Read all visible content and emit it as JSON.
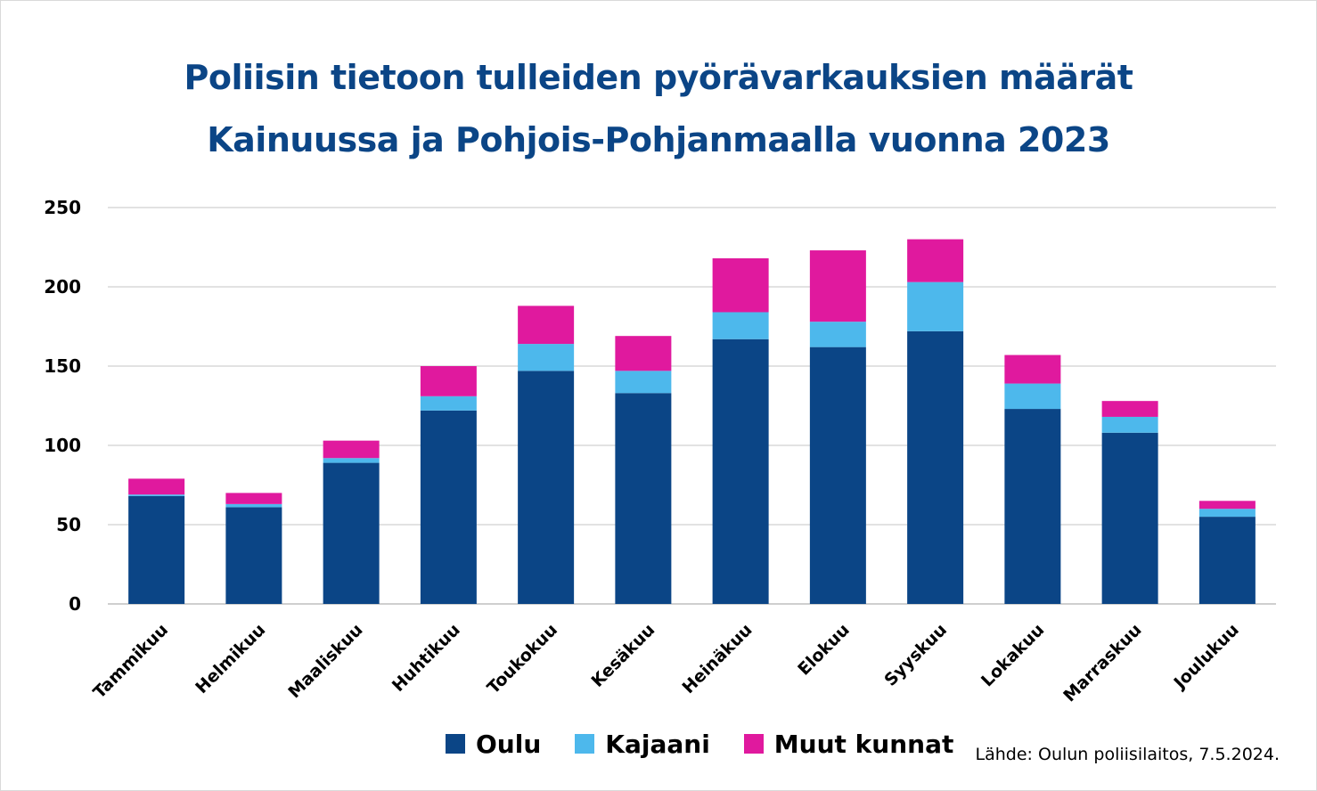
{
  "title_line1": "Poliisin tietoon tulleiden pyörävarkauksien määrät",
  "title_line2": "Kainuussa ja Pohjois-Pohjanmaalla vuonna 2023",
  "source": "Lähde: Oulun poliisilaitos, 7.5.2024.",
  "chart_data": {
    "type": "bar",
    "stacked": true,
    "title": "Poliisin tietoon tulleiden pyörävarkauksien määrät Kainuussa ja Pohjois-Pohjanmaalla vuonna 2023",
    "xlabel": "",
    "ylabel": "",
    "ylim": [
      0,
      250
    ],
    "yticks": [
      0,
      50,
      100,
      150,
      200,
      250
    ],
    "grid": true,
    "legend_position": "bottom",
    "categories": [
      "Tammikuu",
      "Helmikuu",
      "Maaliskuu",
      "Huhtikuu",
      "Toukokuu",
      "Kesäkuu",
      "Heinäkuu",
      "Elokuu",
      "Syyskuu",
      "Lokakuu",
      "Marraskuu",
      "Joulukuu"
    ],
    "series": [
      {
        "name": "Oulu",
        "color": "#0b4586",
        "values": [
          68,
          61,
          89,
          122,
          147,
          133,
          167,
          162,
          172,
          123,
          108,
          55
        ]
      },
      {
        "name": "Kajaani",
        "color": "#4db8ec",
        "values": [
          1,
          2,
          3,
          9,
          17,
          14,
          17,
          16,
          31,
          16,
          10,
          5
        ]
      },
      {
        "name": "Muut kunnat",
        "color": "#e0199e",
        "values": [
          10,
          7,
          11,
          19,
          24,
          22,
          34,
          45,
          27,
          18,
          10,
          5
        ]
      }
    ]
  }
}
